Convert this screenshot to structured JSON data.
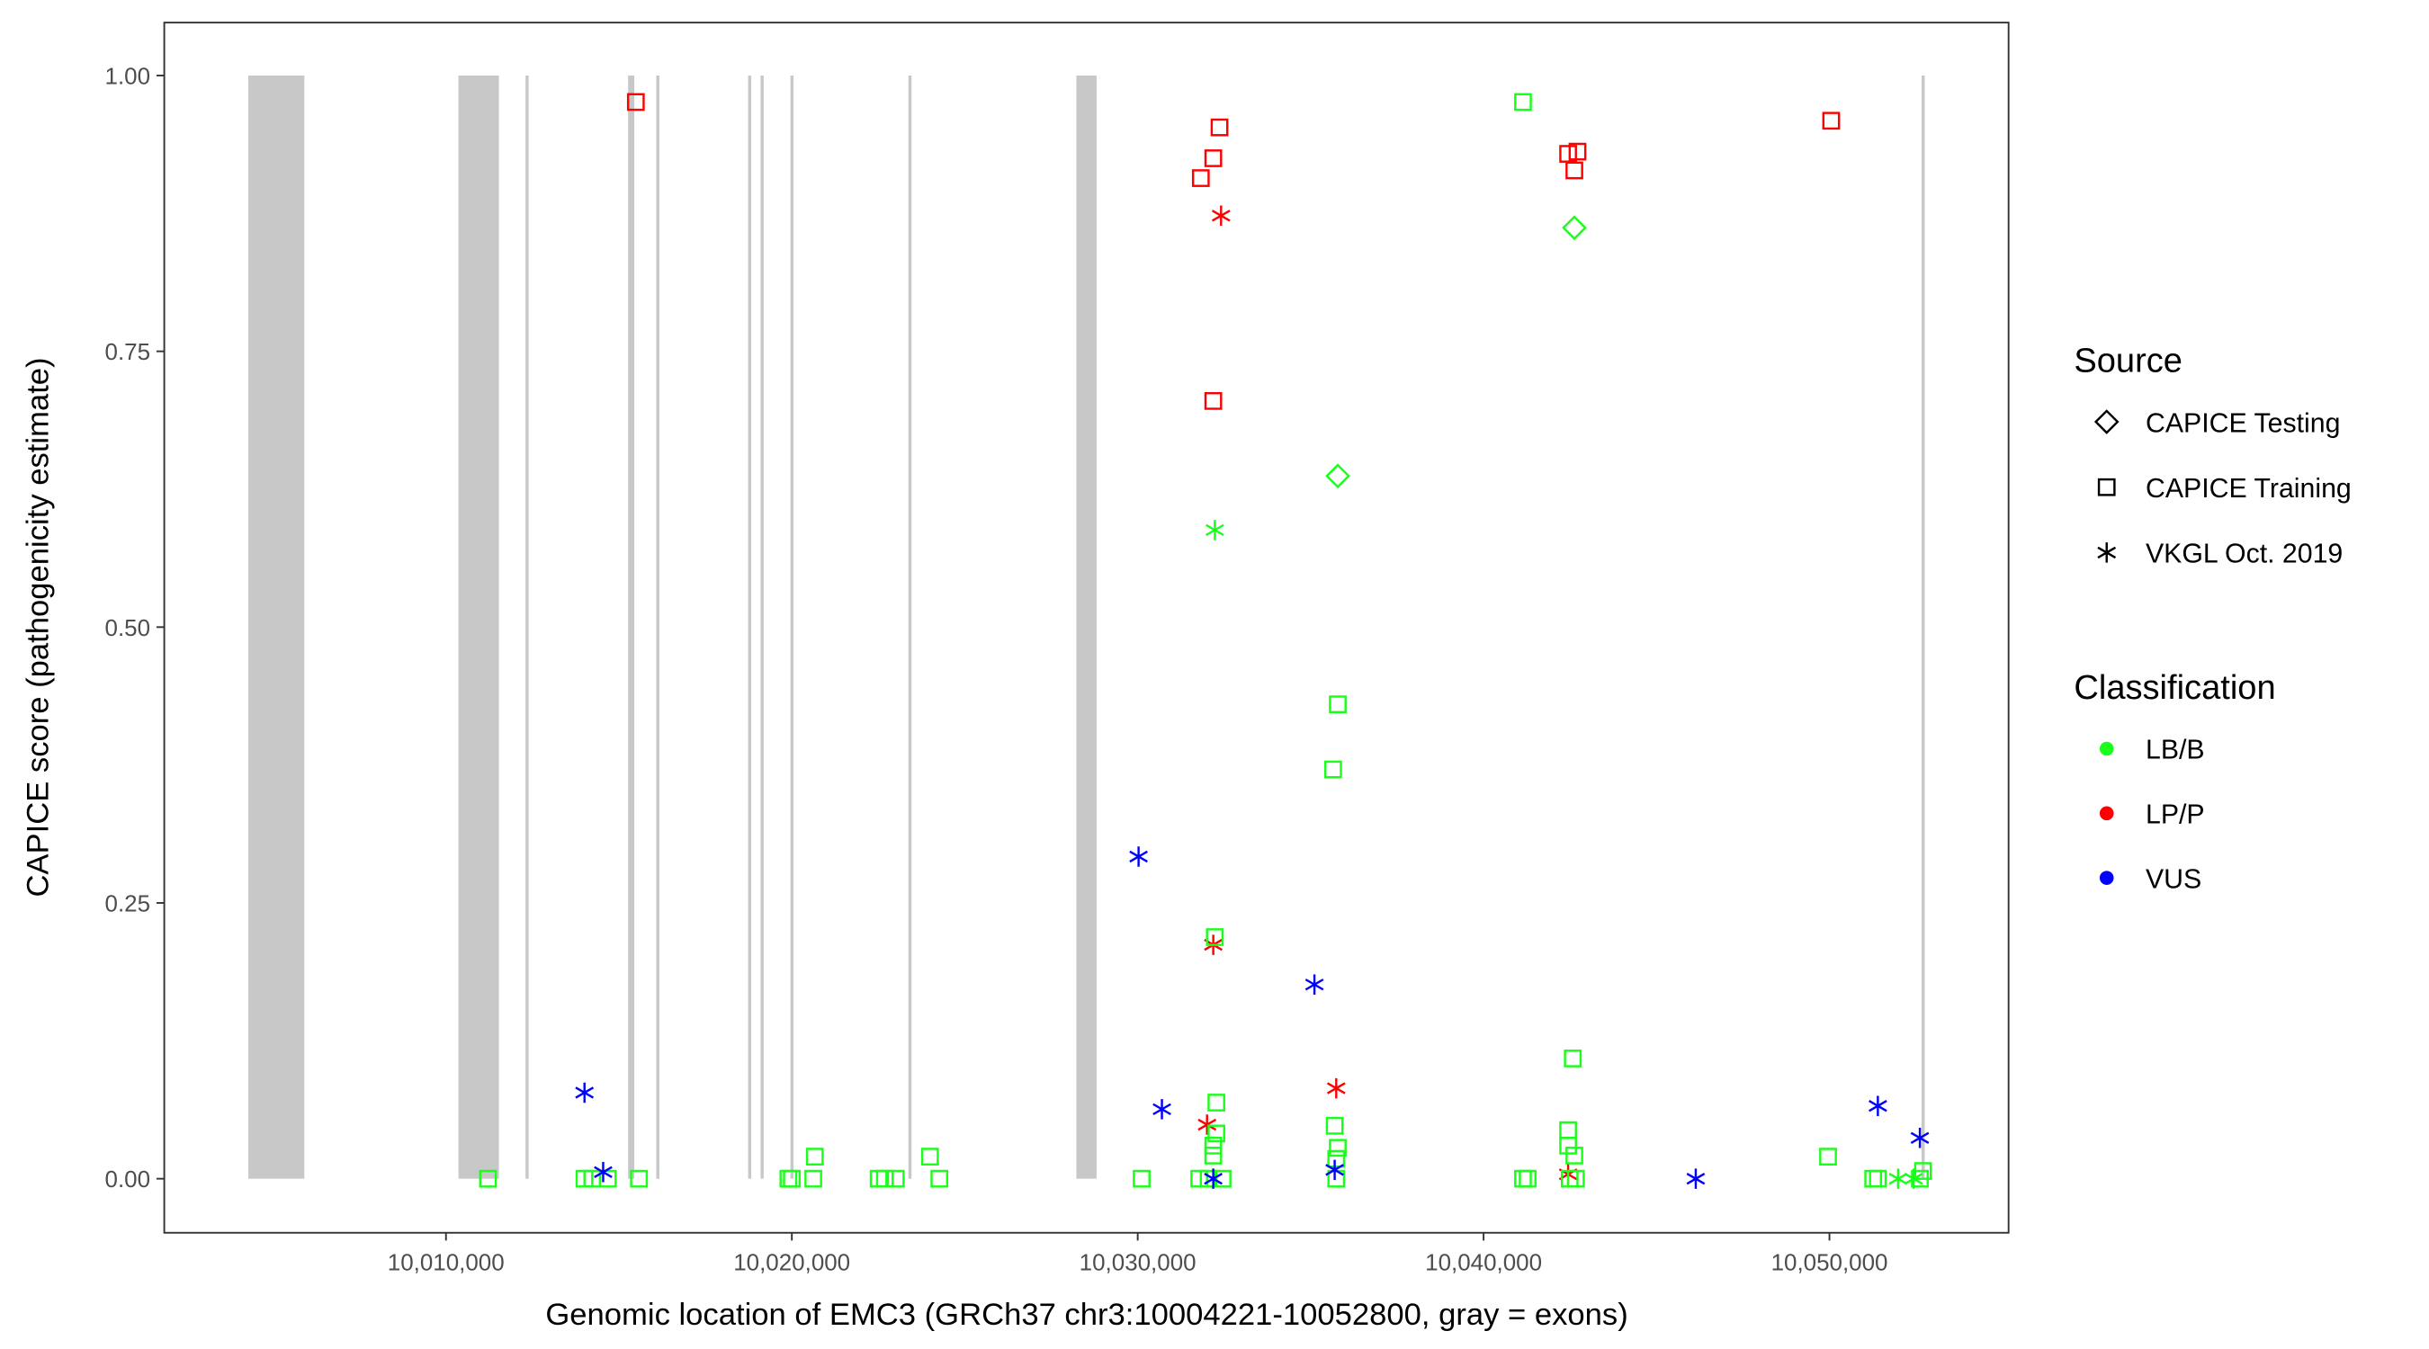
{
  "chart_data": {
    "type": "scatter",
    "title": "",
    "xlabel": "Genomic location of EMC3 (GRCh37 chr3:10004221-10052800, gray = exons)",
    "ylabel": "CAPICE score (pathogenicity estimate)",
    "xlim": [
      10001855,
      10055180
    ],
    "ylim": [
      -0.049,
      1.048
    ],
    "x_ticks": [
      10010000,
      10020000,
      10030000,
      10040000,
      10050000
    ],
    "x_tick_labels": [
      "10,010,000",
      "10,020,000",
      "10,030,000",
      "10,040,000",
      "10,050,000"
    ],
    "y_ticks": [
      0,
      0.25,
      0.5,
      0.75,
      1.0
    ],
    "y_tick_labels": [
      "0.00",
      "0.25",
      "0.50",
      "0.75",
      "1.00"
    ],
    "grid": false,
    "exons": [
      [
        10004285,
        10005905
      ],
      [
        10010360,
        10011530
      ],
      [
        10012300,
        10012380
      ],
      [
        10015265,
        10015445
      ],
      [
        10016080,
        10016160
      ],
      [
        10018736,
        10018816
      ],
      [
        10019096,
        10019176
      ],
      [
        10019960,
        10020040
      ],
      [
        10023371,
        10023451
      ],
      [
        10028227,
        10028812
      ],
      [
        10052665,
        10052745
      ]
    ],
    "exon_color": "#c8c8c8",
    "legend": {
      "placement": "right",
      "source_title": "Source",
      "source_items": [
        "CAPICE Testing",
        "CAPICE Training",
        "VKGL Oct. 2019"
      ],
      "source_shapes": [
        "diamond",
        "square",
        "asterisk"
      ],
      "class_title": "Classification",
      "class_items": [
        "LB/B",
        "LP/P",
        "VUS"
      ],
      "class_colors": [
        "#1aff1a",
        "#ff0000",
        "#0000ff"
      ]
    },
    "points": [
      [
        10015490,
        0.976,
        "CAPICE Training",
        "LP/P"
      ],
      [
        10031825,
        0.907,
        "CAPICE Training",
        "LP/P"
      ],
      [
        10032185,
        0.925,
        "CAPICE Training",
        "LP/P"
      ],
      [
        10032365,
        0.953,
        "CAPICE Training",
        "LP/P"
      ],
      [
        10032185,
        0.705,
        "CAPICE Training",
        "LP/P"
      ],
      [
        10042445,
        0.929,
        "CAPICE Training",
        "LP/P"
      ],
      [
        10042715,
        0.931,
        "CAPICE Training",
        "LP/P"
      ],
      [
        10042625,
        0.914,
        "CAPICE Training",
        "LP/P"
      ],
      [
        10050050,
        0.959,
        "CAPICE Training",
        "LP/P"
      ],
      [
        10032410,
        0.873,
        "VKGL Oct. 2019",
        "LP/P"
      ],
      [
        10032185,
        0.212,
        "VKGL Oct. 2019",
        "LP/P"
      ],
      [
        10032005,
        0.049,
        "VKGL Oct. 2019",
        "LP/P"
      ],
      [
        10035740,
        0.082,
        "VKGL Oct. 2019",
        "LP/P"
      ],
      [
        10042445,
        0.004,
        "VKGL Oct. 2019",
        "LP/P"
      ],
      [
        10011215,
        0.0,
        "CAPICE Training",
        "LB/B"
      ],
      [
        10014005,
        0.0,
        "CAPICE Training",
        "LB/B"
      ],
      [
        10014230,
        0.0,
        "CAPICE Training",
        "LB/B"
      ],
      [
        10014680,
        0.0,
        "CAPICE Training",
        "LB/B"
      ],
      [
        10015580,
        0.0,
        "CAPICE Training",
        "LB/B"
      ],
      [
        10019900,
        0.0,
        "CAPICE Training",
        "LB/B"
      ],
      [
        10020000,
        0.0,
        "CAPICE Training",
        "LB/B"
      ],
      [
        10020620,
        0.0,
        "CAPICE Training",
        "LB/B"
      ],
      [
        10022510,
        0.0,
        "CAPICE Training",
        "LB/B"
      ],
      [
        10022690,
        0.0,
        "CAPICE Training",
        "LB/B"
      ],
      [
        10023005,
        0.0,
        "CAPICE Training",
        "LB/B"
      ],
      [
        10024265,
        0.0,
        "CAPICE Training",
        "LB/B"
      ],
      [
        10030115,
        0.0,
        "CAPICE Training",
        "LB/B"
      ],
      [
        10031780,
        0.0,
        "CAPICE Training",
        "LB/B"
      ],
      [
        10032050,
        0.0,
        "CAPICE Training",
        "LB/B"
      ],
      [
        10032455,
        0.0,
        "CAPICE Training",
        "LB/B"
      ],
      [
        10035740,
        0.0,
        "CAPICE Training",
        "LB/B"
      ],
      [
        10041140,
        0.0,
        "CAPICE Training",
        "LB/B"
      ],
      [
        10041275,
        0.0,
        "CAPICE Training",
        "LB/B"
      ],
      [
        10042490,
        0.0,
        "CAPICE Training",
        "LB/B"
      ],
      [
        10042670,
        0.0,
        "CAPICE Training",
        "LB/B"
      ],
      [
        10051265,
        0.0,
        "CAPICE Training",
        "LB/B"
      ],
      [
        10051400,
        0.0,
        "CAPICE Training",
        "LB/B"
      ],
      [
        10052615,
        0.0,
        "CAPICE Training",
        "LB/B"
      ],
      [
        10020665,
        0.02,
        "CAPICE Training",
        "LB/B"
      ],
      [
        10023995,
        0.02,
        "CAPICE Training",
        "LB/B"
      ],
      [
        10049960,
        0.02,
        "CAPICE Training",
        "LB/B"
      ],
      [
        10041140,
        0.976,
        "CAPICE Training",
        "LB/B"
      ],
      [
        10035785,
        0.43,
        "CAPICE Training",
        "LB/B"
      ],
      [
        10035650,
        0.371,
        "CAPICE Training",
        "LB/B"
      ],
      [
        10032230,
        0.219,
        "CAPICE Training",
        "LB/B"
      ],
      [
        10042580,
        0.109,
        "CAPICE Training",
        "LB/B"
      ],
      [
        10032275,
        0.069,
        "CAPICE Training",
        "LB/B"
      ],
      [
        10035695,
        0.048,
        "CAPICE Training",
        "LB/B"
      ],
      [
        10042445,
        0.044,
        "CAPICE Training",
        "LB/B"
      ],
      [
        10032275,
        0.041,
        "CAPICE Training",
        "LB/B"
      ],
      [
        10032185,
        0.03,
        "CAPICE Training",
        "LB/B"
      ],
      [
        10035785,
        0.028,
        "CAPICE Training",
        "LB/B"
      ],
      [
        10042445,
        0.03,
        "CAPICE Training",
        "LB/B"
      ],
      [
        10042625,
        0.021,
        "CAPICE Training",
        "LB/B"
      ],
      [
        10032185,
        0.021,
        "CAPICE Training",
        "LB/B"
      ],
      [
        10035740,
        0.018,
        "CAPICE Training",
        "LB/B"
      ],
      [
        10052705,
        0.007,
        "CAPICE Training",
        "LB/B"
      ],
      [
        10042625,
        0.862,
        "CAPICE Testing",
        "LB/B"
      ],
      [
        10035785,
        0.637,
        "CAPICE Testing",
        "LB/B"
      ],
      [
        10032230,
        0.588,
        "VKGL Oct. 2019",
        "LB/B"
      ],
      [
        10051985,
        0.0,
        "VKGL Oct. 2019",
        "LB/B"
      ],
      [
        10052435,
        0.0,
        "VKGL Oct. 2019",
        "LB/B"
      ],
      [
        10014005,
        0.078,
        "VKGL Oct. 2019",
        "VUS"
      ],
      [
        10014545,
        0.006,
        "VKGL Oct. 2019",
        "VUS"
      ],
      [
        10030025,
        0.292,
        "VKGL Oct. 2019",
        "VUS"
      ],
      [
        10030700,
        0.063,
        "VKGL Oct. 2019",
        "VUS"
      ],
      [
        10035110,
        0.176,
        "VKGL Oct. 2019",
        "VUS"
      ],
      [
        10035695,
        0.008,
        "VKGL Oct. 2019",
        "VUS"
      ],
      [
        10032185,
        0.0,
        "VKGL Oct. 2019",
        "VUS"
      ],
      [
        10046135,
        0.0,
        "VKGL Oct. 2019",
        "VUS"
      ],
      [
        10051400,
        0.066,
        "VKGL Oct. 2019",
        "VUS"
      ],
      [
        10052615,
        0.037,
        "VKGL Oct. 2019",
        "VUS"
      ]
    ]
  }
}
